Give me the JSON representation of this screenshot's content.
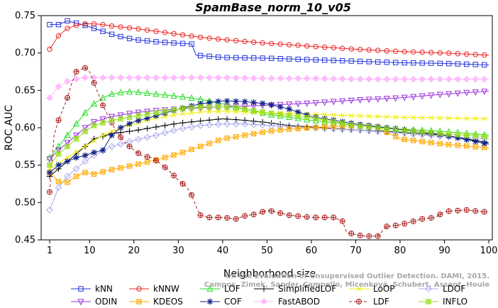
{
  "chart_data": {
    "type": "line",
    "title": "SpamBase_norm_10_v05",
    "xlabel": "Neighborhood size",
    "ylabel": "ROC AUC",
    "xlim": [
      0,
      100
    ],
    "ylim": [
      0.45,
      0.75
    ],
    "xticks": [
      1,
      10,
      20,
      30,
      40,
      50,
      60,
      70,
      80,
      90,
      100
    ],
    "yticks": [
      0.45,
      0.5,
      0.55,
      0.6,
      0.65,
      0.7,
      0.75
    ],
    "ytick_labels": [
      "0.45",
      "0.50",
      "0.55",
      "0.60",
      "0.65",
      "0.70",
      "0.75"
    ],
    "grid": false,
    "legend_position": "bottom",
    "watermark": "Campos, Zimek, Sander, Campello, Micenková, Schubert, Assent, Houle: On the Evaluation of Unsupervised Outlier Detection. DAMI, 2015.",
    "series": [
      {
        "name": "kNN",
        "color": "#2233dd",
        "marker": "square",
        "dash": "",
        "points": [
          [
            1,
            0.738
          ],
          [
            3,
            0.738
          ],
          [
            5,
            0.743
          ],
          [
            7,
            0.74
          ],
          [
            9,
            0.737
          ],
          [
            11,
            0.733
          ],
          [
            13,
            0.729
          ],
          [
            15,
            0.725
          ],
          [
            17,
            0.722
          ],
          [
            20,
            0.718
          ],
          [
            25,
            0.715
          ],
          [
            30,
            0.713
          ],
          [
            33,
            0.712
          ],
          [
            34,
            0.697
          ],
          [
            40,
            0.694
          ],
          [
            50,
            0.693
          ],
          [
            60,
            0.691
          ],
          [
            70,
            0.689
          ],
          [
            80,
            0.687
          ],
          [
            90,
            0.686
          ],
          [
            100,
            0.684
          ]
        ]
      },
      {
        "name": "kNNW",
        "color": "#ee2222",
        "marker": "circle",
        "dash": "",
        "points": [
          [
            1,
            0.705
          ],
          [
            3,
            0.723
          ],
          [
            5,
            0.733
          ],
          [
            7,
            0.737
          ],
          [
            9,
            0.739
          ],
          [
            11,
            0.739
          ],
          [
            13,
            0.738
          ],
          [
            15,
            0.736
          ],
          [
            20,
            0.733
          ],
          [
            25,
            0.729
          ],
          [
            30,
            0.725
          ],
          [
            35,
            0.721
          ],
          [
            40,
            0.718
          ],
          [
            50,
            0.713
          ],
          [
            60,
            0.709
          ],
          [
            70,
            0.705
          ],
          [
            80,
            0.702
          ],
          [
            90,
            0.7
          ],
          [
            100,
            0.697
          ]
        ]
      },
      {
        "name": "LOF",
        "color": "#22dd22",
        "marker": "triangle-up",
        "dash": "",
        "points": [
          [
            1,
            0.56
          ],
          [
            3,
            0.575
          ],
          [
            5,
            0.59
          ],
          [
            7,
            0.605
          ],
          [
            9,
            0.62
          ],
          [
            11,
            0.632
          ],
          [
            13,
            0.64
          ],
          [
            15,
            0.645
          ],
          [
            18,
            0.648
          ],
          [
            20,
            0.648
          ],
          [
            25,
            0.645
          ],
          [
            30,
            0.642
          ],
          [
            35,
            0.638
          ],
          [
            40,
            0.632
          ],
          [
            45,
            0.625
          ],
          [
            50,
            0.618
          ],
          [
            60,
            0.61
          ],
          [
            70,
            0.603
          ],
          [
            80,
            0.598
          ],
          [
            90,
            0.595
          ],
          [
            100,
            0.59
          ]
        ]
      },
      {
        "name": "SimplifiedLOF",
        "color": "#000000",
        "marker": "plus",
        "dash": "",
        "points": [
          [
            1,
            0.535
          ],
          [
            3,
            0.545
          ],
          [
            5,
            0.555
          ],
          [
            7,
            0.565
          ],
          [
            9,
            0.575
          ],
          [
            11,
            0.585
          ],
          [
            15,
            0.592
          ],
          [
            20,
            0.596
          ],
          [
            25,
            0.601
          ],
          [
            30,
            0.606
          ],
          [
            35,
            0.609
          ],
          [
            40,
            0.612
          ],
          [
            45,
            0.61
          ],
          [
            50,
            0.607
          ],
          [
            55,
            0.603
          ],
          [
            60,
            0.601
          ],
          [
            70,
            0.597
          ],
          [
            80,
            0.594
          ],
          [
            90,
            0.59
          ],
          [
            100,
            0.58
          ]
        ]
      },
      {
        "name": "LoOP",
        "color": "#eeee00",
        "marker": "x",
        "dash": "",
        "points": [
          [
            1,
            0.545
          ],
          [
            5,
            0.56
          ],
          [
            9,
            0.575
          ],
          [
            13,
            0.59
          ],
          [
            17,
            0.6
          ],
          [
            20,
            0.605
          ],
          [
            25,
            0.613
          ],
          [
            30,
            0.618
          ],
          [
            35,
            0.621
          ],
          [
            40,
            0.622
          ],
          [
            50,
            0.62
          ],
          [
            60,
            0.618
          ],
          [
            70,
            0.616
          ],
          [
            80,
            0.614
          ],
          [
            90,
            0.613
          ],
          [
            100,
            0.612
          ]
        ]
      },
      {
        "name": "LDOF",
        "color": "#aaaaee",
        "marker": "diamond",
        "dash": "",
        "points": [
          [
            1,
            0.49
          ],
          [
            3,
            0.52
          ],
          [
            5,
            0.535
          ],
          [
            7,
            0.545
          ],
          [
            9,
            0.555
          ],
          [
            11,
            0.563
          ],
          [
            15,
            0.575
          ],
          [
            20,
            0.583
          ],
          [
            25,
            0.59
          ],
          [
            30,
            0.598
          ],
          [
            35,
            0.603
          ],
          [
            40,
            0.605
          ],
          [
            45,
            0.605
          ],
          [
            50,
            0.603
          ],
          [
            60,
            0.6
          ],
          [
            70,
            0.597
          ],
          [
            80,
            0.593
          ],
          [
            90,
            0.588
          ],
          [
            100,
            0.585
          ]
        ]
      },
      {
        "name": "ODIN",
        "color": "#9933dd",
        "marker": "triangle-down",
        "dash": "",
        "points": [
          [
            1,
            0.558
          ],
          [
            3,
            0.57
          ],
          [
            5,
            0.58
          ],
          [
            7,
            0.59
          ],
          [
            9,
            0.6
          ],
          [
            11,
            0.608
          ],
          [
            15,
            0.615
          ],
          [
            20,
            0.62
          ],
          [
            25,
            0.623
          ],
          [
            30,
            0.625
          ],
          [
            35,
            0.627
          ],
          [
            40,
            0.628
          ],
          [
            50,
            0.63
          ],
          [
            60,
            0.633
          ],
          [
            70,
            0.637
          ],
          [
            80,
            0.64
          ],
          [
            90,
            0.645
          ],
          [
            100,
            0.649
          ]
        ]
      },
      {
        "name": "KDEOS",
        "color": "#ffaa00",
        "marker": "square-x",
        "dash": "",
        "points": [
          [
            1,
            0.54
          ],
          [
            3,
            0.528
          ],
          [
            5,
            0.527
          ],
          [
            7,
            0.535
          ],
          [
            9,
            0.54
          ],
          [
            11,
            0.538
          ],
          [
            15,
            0.544
          ],
          [
            20,
            0.55
          ],
          [
            25,
            0.557
          ],
          [
            30,
            0.565
          ],
          [
            35,
            0.575
          ],
          [
            40,
            0.585
          ],
          [
            45,
            0.59
          ],
          [
            50,
            0.595
          ],
          [
            55,
            0.598
          ],
          [
            60,
            0.6
          ],
          [
            65,
            0.602
          ],
          [
            70,
            0.603
          ],
          [
            75,
            0.6
          ],
          [
            80,
            0.585
          ],
          [
            90,
            0.578
          ],
          [
            100,
            0.573
          ]
        ]
      },
      {
        "name": "COF",
        "color": "#112288",
        "marker": "star",
        "dash": "",
        "points": [
          [
            1,
            0.54
          ],
          [
            3,
            0.55
          ],
          [
            5,
            0.555
          ],
          [
            7,
            0.56
          ],
          [
            9,
            0.563
          ],
          [
            11,
            0.567
          ],
          [
            13,
            0.57
          ],
          [
            15,
            0.59
          ],
          [
            17,
            0.6
          ],
          [
            20,
            0.608
          ],
          [
            25,
            0.616
          ],
          [
            30,
            0.625
          ],
          [
            35,
            0.632
          ],
          [
            40,
            0.636
          ],
          [
            45,
            0.635
          ],
          [
            50,
            0.632
          ],
          [
            55,
            0.625
          ],
          [
            60,
            0.615
          ],
          [
            70,
            0.605
          ],
          [
            80,
            0.598
          ],
          [
            90,
            0.59
          ],
          [
            100,
            0.578
          ]
        ]
      },
      {
        "name": "FastABOD",
        "color": "#ffbbff",
        "marker": "diamond-filled",
        "dash": "",
        "points": [
          [
            1,
            0.64
          ],
          [
            3,
            0.655
          ],
          [
            5,
            0.662
          ],
          [
            7,
            0.665
          ],
          [
            9,
            0.667
          ],
          [
            11,
            0.667
          ],
          [
            15,
            0.667
          ],
          [
            20,
            0.667
          ],
          [
            30,
            0.667
          ],
          [
            40,
            0.667
          ],
          [
            50,
            0.666
          ],
          [
            60,
            0.666
          ],
          [
            70,
            0.665
          ],
          [
            80,
            0.665
          ],
          [
            90,
            0.665
          ],
          [
            100,
            0.665
          ]
        ]
      },
      {
        "name": "LDF",
        "color": "#aa2222",
        "marker": "circle-plus",
        "dash": "4,3",
        "points": [
          [
            1,
            0.514
          ],
          [
            2,
            0.59
          ],
          [
            3,
            0.61
          ],
          [
            4,
            0.625
          ],
          [
            5,
            0.64
          ],
          [
            6,
            0.66
          ],
          [
            7,
            0.675
          ],
          [
            8,
            0.678
          ],
          [
            9,
            0.68
          ],
          [
            10,
            0.675
          ],
          [
            11,
            0.66
          ],
          [
            12,
            0.645
          ],
          [
            13,
            0.63
          ],
          [
            14,
            0.618
          ],
          [
            15,
            0.607
          ],
          [
            16,
            0.595
          ],
          [
            18,
            0.58
          ],
          [
            20,
            0.57
          ],
          [
            22,
            0.562
          ],
          [
            24,
            0.56
          ],
          [
            26,
            0.552
          ],
          [
            28,
            0.542
          ],
          [
            30,
            0.53
          ],
          [
            32,
            0.52
          ],
          [
            33,
            0.51
          ],
          [
            34,
            0.495
          ],
          [
            35,
            0.483
          ],
          [
            37,
            0.48
          ],
          [
            40,
            0.48
          ],
          [
            43,
            0.478
          ],
          [
            45,
            0.482
          ],
          [
            48,
            0.485
          ],
          [
            50,
            0.49
          ],
          [
            55,
            0.483
          ],
          [
            60,
            0.48
          ],
          [
            65,
            0.48
          ],
          [
            67,
            0.475
          ],
          [
            68,
            0.46
          ],
          [
            70,
            0.457
          ],
          [
            72,
            0.455
          ],
          [
            75,
            0.455
          ],
          [
            77,
            0.468
          ],
          [
            80,
            0.47
          ],
          [
            85,
            0.478
          ],
          [
            88,
            0.48
          ],
          [
            90,
            0.488
          ],
          [
            95,
            0.49
          ],
          [
            98,
            0.488
          ],
          [
            100,
            0.487
          ]
        ]
      },
      {
        "name": "INFLO",
        "color": "#99dd22",
        "marker": "square-star",
        "dash": "",
        "points": [
          [
            1,
            0.55
          ],
          [
            3,
            0.565
          ],
          [
            5,
            0.575
          ],
          [
            7,
            0.585
          ],
          [
            9,
            0.595
          ],
          [
            11,
            0.603
          ],
          [
            15,
            0.61
          ],
          [
            20,
            0.615
          ],
          [
            25,
            0.62
          ],
          [
            30,
            0.625
          ],
          [
            35,
            0.628
          ],
          [
            40,
            0.628
          ],
          [
            45,
            0.625
          ],
          [
            50,
            0.62
          ],
          [
            60,
            0.613
          ],
          [
            70,
            0.603
          ],
          [
            80,
            0.597
          ],
          [
            90,
            0.592
          ],
          [
            100,
            0.588
          ]
        ]
      }
    ]
  }
}
